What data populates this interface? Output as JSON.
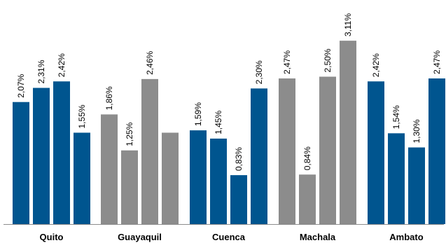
{
  "chart_data": {
    "type": "bar",
    "title": "",
    "xlabel": "",
    "ylabel": "",
    "ylim": [
      0,
      3.2
    ],
    "grid": false,
    "legend": "none",
    "colors": {
      "blue": "#00558F",
      "gray": "#8C8C8C",
      "axis": "#8C8C8C"
    },
    "groups": [
      {
        "category": "Quito",
        "bars": [
          {
            "value": 2.07,
            "label": "2,07%",
            "color": "blue"
          },
          {
            "value": 2.31,
            "label": "2,31%",
            "color": "blue"
          },
          {
            "value": 2.42,
            "label": "2,42%",
            "color": "blue"
          },
          {
            "value": 1.55,
            "label": "1,55%",
            "color": "blue"
          }
        ]
      },
      {
        "category": "Guayaquil",
        "bars": [
          {
            "value": 1.86,
            "label": "1,86%",
            "color": "gray"
          },
          {
            "value": 1.25,
            "label": "1,25%",
            "color": "gray"
          },
          {
            "value": 2.46,
            "label": "2,46%",
            "color": "gray"
          },
          {
            "value": 1.55,
            "label": "",
            "color": "gray"
          }
        ]
      },
      {
        "category": "Cuenca",
        "bars": [
          {
            "value": 1.59,
            "label": "1,59%",
            "color": "blue"
          },
          {
            "value": 1.45,
            "label": "1,45%",
            "color": "blue"
          },
          {
            "value": 0.83,
            "label": "0,83%",
            "color": "blue"
          },
          {
            "value": 2.3,
            "label": "2,30%",
            "color": "blue"
          }
        ]
      },
      {
        "category": "Machala",
        "bars": [
          {
            "value": 2.47,
            "label": "2,47%",
            "color": "gray"
          },
          {
            "value": 0.84,
            "label": "0,84%",
            "color": "gray"
          },
          {
            "value": 2.5,
            "label": "2,50%",
            "color": "gray"
          },
          {
            "value": 3.11,
            "label": "3,11%",
            "color": "gray"
          }
        ]
      },
      {
        "category": "Ambato",
        "bars": [
          {
            "value": 2.42,
            "label": "2,42%",
            "color": "blue"
          },
          {
            "value": 1.54,
            "label": "1,54%",
            "color": "blue"
          },
          {
            "value": 1.3,
            "label": "1,30%",
            "color": "blue"
          },
          {
            "value": 2.47,
            "label": "2,47%",
            "color": "blue"
          }
        ]
      }
    ]
  }
}
